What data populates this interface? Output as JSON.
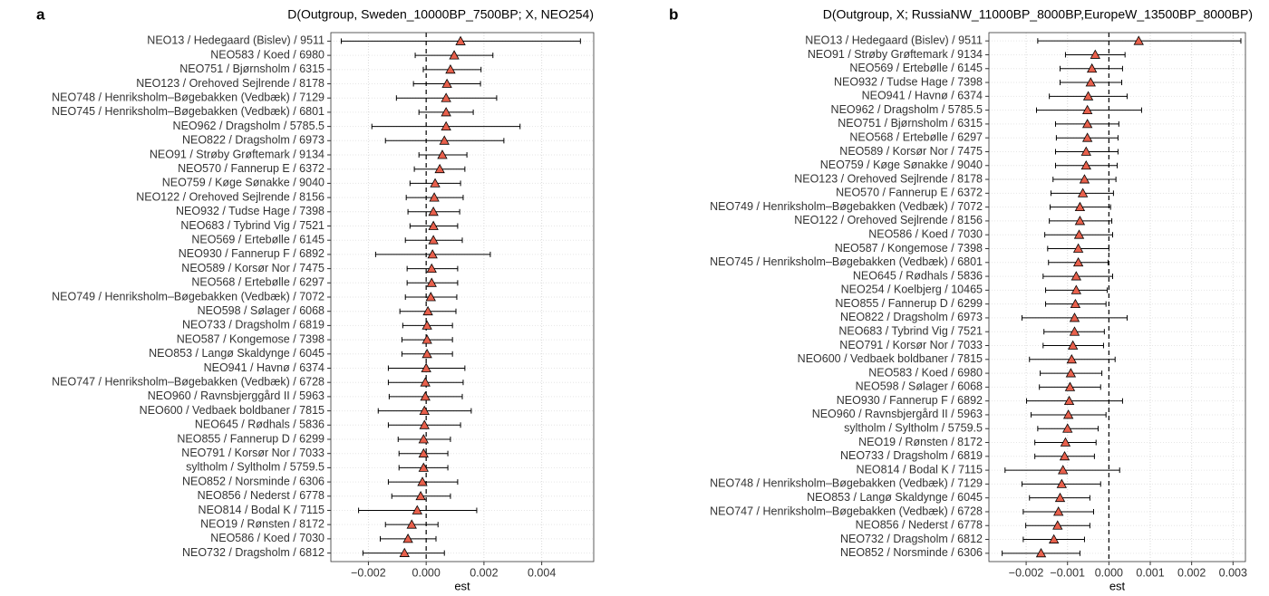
{
  "chart_data": [
    {
      "type": "errorbar",
      "panel": "a",
      "title": "D(Outgroup, Sweden_10000BP_7500BP; X, NEO254)",
      "xlabel": "est",
      "categories": [
        "NEO13 / Hedegaard (Bislev) / 9511",
        "NEO583 / Koed / 6980",
        "NEO751 / Bjørnsholm / 6315",
        "NEO123 / Orehoved Sejlrende / 8178",
        "NEO748 / Henriksholm–Bøgebakken (Vedbæk) / 7129",
        "NEO745 / Henriksholm–Bøgebakken (Vedbæk) / 6801",
        "NEO962 / Dragsholm / 5785.5",
        "NEO822 / Dragsholm / 6973",
        "NEO91 / Strøby Grøftemark / 9134",
        "NEO570 / Fannerup E / 6372",
        "NEO759 / Køge Sønakke / 9040",
        "NEO122 / Orehoved Sejlrende / 8156",
        "NEO932 / Tudse Hage / 7398",
        "NEO683 / Tybrind Vig / 7521",
        "NEO569 / Ertebølle / 6145",
        "NEO930 / Fannerup F / 6892",
        "NEO589 / Korsør Nor / 7475",
        "NEO568 / Ertebølle / 6297",
        "NEO749 / Henriksholm–Bøgebakken (Vedbæk) / 7072",
        "NEO598 / Sølager / 6068",
        "NEO733 / Dragsholm / 6819",
        "NEO587 / Kongemose / 7398",
        "NEO853 / Langø Skaldynge / 6045",
        "NEO941 / Havnø / 6374",
        "NEO747 / Henriksholm–Bøgebakken (Vedbæk) / 6728",
        "NEO960 / Ravnsbjerggård II / 5963",
        "NEO600 / Vedbaek boldbaner / 7815",
        "NEO645 / Rødhals / 5836",
        "NEO855 / Fannerup D / 6299",
        "NEO791 / Korsør Nor / 7033",
        "syltholm / Syltholm / 5759.5",
        "NEO852 / Norsminde / 6306",
        "NEO856 / Nederst / 6778",
        "NEO814 / Bodal K / 7115",
        "NEO19 / Rønsten / 8172",
        "NEO586 / Koed / 7030",
        "NEO732 / Dragsholm / 6812"
      ],
      "values": [
        0.00119,
        0.00097,
        0.00084,
        0.00072,
        0.00069,
        0.00069,
        0.00069,
        0.00063,
        0.00056,
        0.00047,
        0.00031,
        0.00028,
        0.00025,
        0.00025,
        0.00025,
        0.00022,
        0.00019,
        0.00019,
        0.00016,
        6e-05,
        3e-05,
        3e-05,
        3e-05,
        0,
        -3e-05,
        -3e-05,
        -6e-05,
        -6e-05,
        -9e-05,
        -9e-05,
        -9e-05,
        -0.00013,
        -0.00019,
        -0.00031,
        -0.0005,
        -0.00063,
        -0.00075
      ],
      "lower": [
        -0.00294,
        -0.00038,
        -0.0001,
        -0.00044,
        -0.00103,
        -0.00025,
        -0.00188,
        -0.00141,
        -0.00025,
        -0.00041,
        -0.00056,
        -0.00069,
        -0.00063,
        -0.00056,
        -0.00072,
        -0.00175,
        -0.00066,
        -0.00066,
        -0.00072,
        -0.00091,
        -0.00081,
        -0.00084,
        -0.00084,
        -0.00131,
        -0.00131,
        -0.00128,
        -0.00166,
        -0.00131,
        -0.00097,
        -0.00094,
        -0.00094,
        -0.00131,
        -0.00119,
        -0.00234,
        -0.00141,
        -0.00159,
        -0.00219
      ],
      "upper": [
        0.00534,
        0.00231,
        0.0019,
        0.00188,
        0.00244,
        0.00163,
        0.00325,
        0.00269,
        0.00141,
        0.00134,
        0.00119,
        0.00128,
        0.00116,
        0.00109,
        0.00125,
        0.00222,
        0.00109,
        0.00109,
        0.00106,
        0.00103,
        0.00091,
        0.00091,
        0.00091,
        0.00134,
        0.00128,
        0.00125,
        0.00156,
        0.00119,
        0.00084,
        0.00075,
        0.00075,
        0.00109,
        0.00084,
        0.00175,
        0.00041,
        0.00034,
        0.00063
      ],
      "color": "#e8604c",
      "xlim": [
        -0.0033,
        0.0058
      ],
      "xticks": [
        {
          "value": -0.002,
          "label": "−0.002"
        },
        {
          "value": 0,
          "label": "0.000"
        },
        0.002,
        0.004
      ],
      "vline": 0,
      "grid": true
    },
    {
      "type": "errorbar",
      "panel": "b",
      "title": "D(Outgroup, X; RussiaNW_11000BP_8000BP,EuropeW_13500BP_8000BP)",
      "xlabel": "est",
      "categories": [
        "NEO13 / Hedegaard (Bislev) / 9511",
        "NEO91 / Strøby Grøftemark / 9134",
        "NEO569 / Ertebølle / 6145",
        "NEO932 / Tudse Hage / 7398",
        "NEO941 / Havnø / 6374",
        "NEO962 / Dragsholm / 5785.5",
        "NEO751 / Bjørnsholm / 6315",
        "NEO568 / Ertebølle / 6297",
        "NEO589 / Korsør Nor / 7475",
        "NEO759 / Køge Sønakke / 9040",
        "NEO123 / Orehoved Sejlrende / 8178",
        "NEO570 / Fannerup E / 6372",
        "NEO749 / Henriksholm–Bøgebakken (Vedbæk) / 7072",
        "NEO122 / Orehoved Sejlrende / 8156",
        "NEO586 / Koed / 7030",
        "NEO587 / Kongemose / 7398",
        "NEO745 / Henriksholm–Bøgebakken (Vedbæk) / 6801",
        "NEO645 / Rødhals / 5836",
        "NEO254 / Koelbjerg / 10465",
        "NEO855 / Fannerup D / 6299",
        "NEO822 / Dragsholm / 6973",
        "NEO683 / Tybrind Vig / 7521",
        "NEO791 / Korsør Nor / 7033",
        "NEO600 / Vedbaek boldbaner / 7815",
        "NEO583 / Koed / 6980",
        "NEO598 / Sølager / 6068",
        "NEO930 / Fannerup F / 6892",
        "NEO960 / Ravnsbjergård II / 5963",
        "syltholm / Syltholm / 5759.5",
        "NEO19 / Rønsten / 8172",
        "NEO733 / Dragsholm / 6819",
        "NEO814 / Bodal K / 7115",
        "NEO748 / Henriksholm–Bøgebakken (Vedbæk) / 7129",
        "NEO853 / Langø Skaldynge / 6045",
        "NEO747 / Henriksholm–Bøgebakken (Vedbæk) / 6728",
        "NEO856 / Nederst / 6778",
        "NEO732 / Dragsholm / 6812",
        "NEO852 / Norsminde / 6306"
      ],
      "values": [
        0.00072,
        -0.00033,
        -0.00041,
        -0.00044,
        -0.0005,
        -0.00052,
        -0.00052,
        -0.00052,
        -0.00055,
        -0.00055,
        -0.00059,
        -0.00063,
        -0.0007,
        -0.0007,
        -0.00072,
        -0.00074,
        -0.00074,
        -0.00079,
        -0.00079,
        -0.00081,
        -0.00083,
        -0.00083,
        -0.00087,
        -0.0009,
        -0.00092,
        -0.00094,
        -0.00096,
        -0.00098,
        -0.001,
        -0.00105,
        -0.00107,
        -0.00111,
        -0.00114,
        -0.00118,
        -0.00122,
        -0.00124,
        -0.00133,
        -0.00164
      ],
      "lower": [
        -0.00172,
        -0.00105,
        -0.00118,
        -0.00118,
        -0.00144,
        -0.00175,
        -0.00129,
        -0.00127,
        -0.00129,
        -0.00129,
        -0.00135,
        -0.0014,
        -0.00142,
        -0.00144,
        -0.00155,
        -0.00148,
        -0.00146,
        -0.00159,
        -0.00153,
        -0.00153,
        -0.0021,
        -0.00157,
        -0.00159,
        -0.00192,
        -0.00166,
        -0.00168,
        -0.00199,
        -0.00188,
        -0.00172,
        -0.00179,
        -0.00179,
        -0.00251,
        -0.0021,
        -0.00192,
        -0.00207,
        -0.00201,
        -0.00207,
        -0.00258
      ],
      "upper": [
        0.00319,
        0.00039,
        0.00033,
        0.00031,
        0.00044,
        0.00079,
        0.00024,
        0.00022,
        0.00022,
        0.0002,
        0.00017,
        0.00011,
        4e-05,
        7e-05,
        9e-05,
        0,
        -2e-05,
        9e-05,
        -4e-05,
        -7e-05,
        0.00044,
        -0.00011,
        -0.00013,
        0.00015,
        -0.00017,
        -0.0002,
        0.00033,
        -7e-05,
        -0.00026,
        -0.00031,
        -0.00035,
        0.00026,
        -0.0002,
        -0.00046,
        -0.00037,
        -0.00046,
        -0.00059,
        -0.0007
      ],
      "color": "#e8604c",
      "xlim": [
        -0.0029,
        0.0033
      ],
      "xticks": [
        {
          "value": -0.002,
          "label": "−0.002"
        },
        {
          "value": -0.001,
          "label": "−0.001"
        },
        {
          "value": 0,
          "label": "0.000"
        },
        0.001,
        0.002,
        0.003
      ],
      "vline": 0,
      "grid": true
    }
  ]
}
